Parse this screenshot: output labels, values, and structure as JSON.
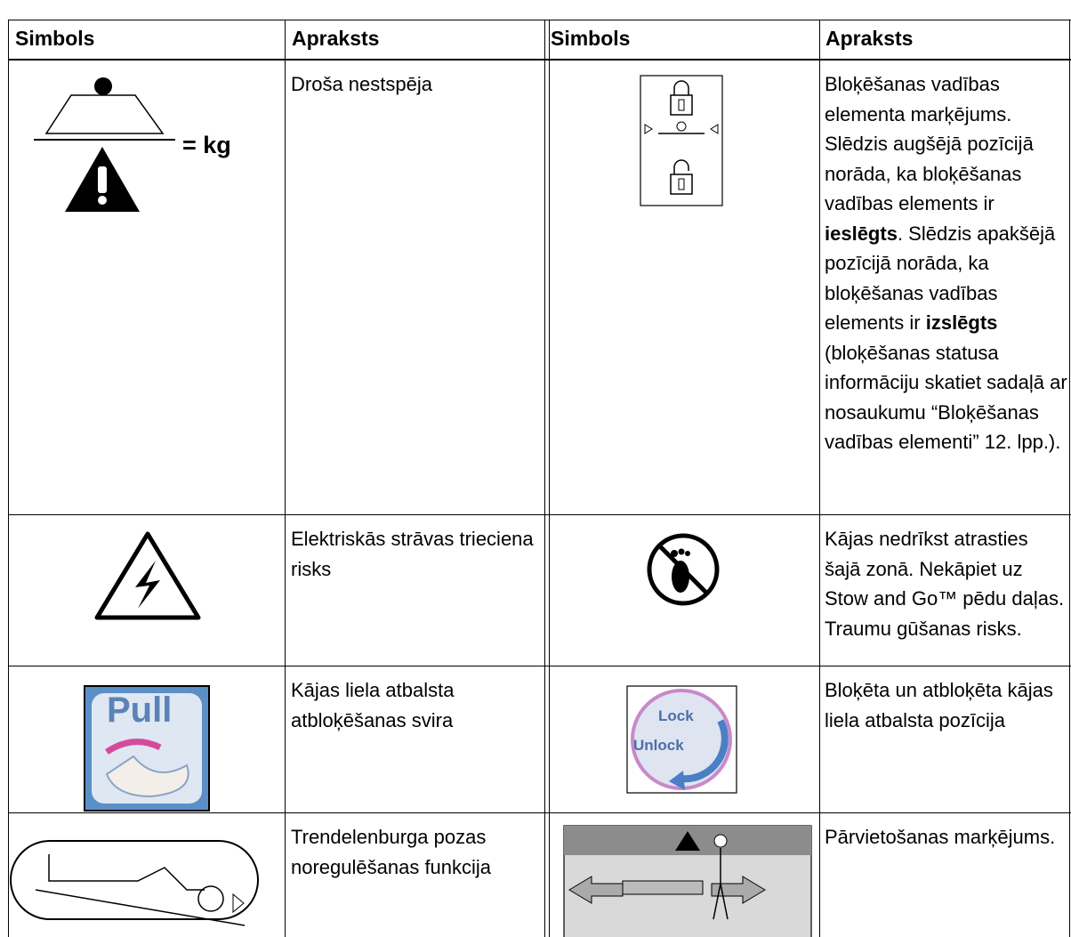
{
  "table": {
    "header": [
      "Simbols",
      "Apraksts",
      "Simbols",
      "Apraksts"
    ],
    "rows": [
      {
        "left_icon_text": "= kg",
        "left": [
          "Droša nestspēja"
        ],
        "right": [
          "Bloķēšanas vadības elementa marķējums. Slēdzis augšējā pozīcijā norāda, ka bloķēšanas vadības elements ir ",
          "ieslēgts",
          ". Slēdzis apakšējā pozīcijā norāda, ka bloķēšanas vadības elements ir ",
          "izslēgts",
          " (bloķēšanas statusa informāciju skatiet sadaļā ar nosaukumu “Bloķēšanas vadības elementi” 12. lpp.)."
        ]
      },
      {
        "left": [
          "Elektriskās strāvas trieciena risks"
        ],
        "right": [
          "Kājas nedrīkst atrasties šajā zonā. Nekāpiet uz Stow and Go™ pēdu daļas. Traumu gūšanas risks."
        ]
      },
      {
        "left_icon_text": "Pull",
        "right_icon_texts": [
          "Lock",
          "Unlock"
        ],
        "left": [
          "Kājas liela atbalsta atbloķēšanas svira"
        ],
        "right": [
          "Bloķēta un atbloķēta kājas liela atbalsta pozīcija"
        ]
      },
      {
        "left": [
          "Trendelenburga pozas noregulēšanas funkcija"
        ],
        "right": [
          "Pārvietošanas marķējums."
        ]
      }
    ]
  }
}
